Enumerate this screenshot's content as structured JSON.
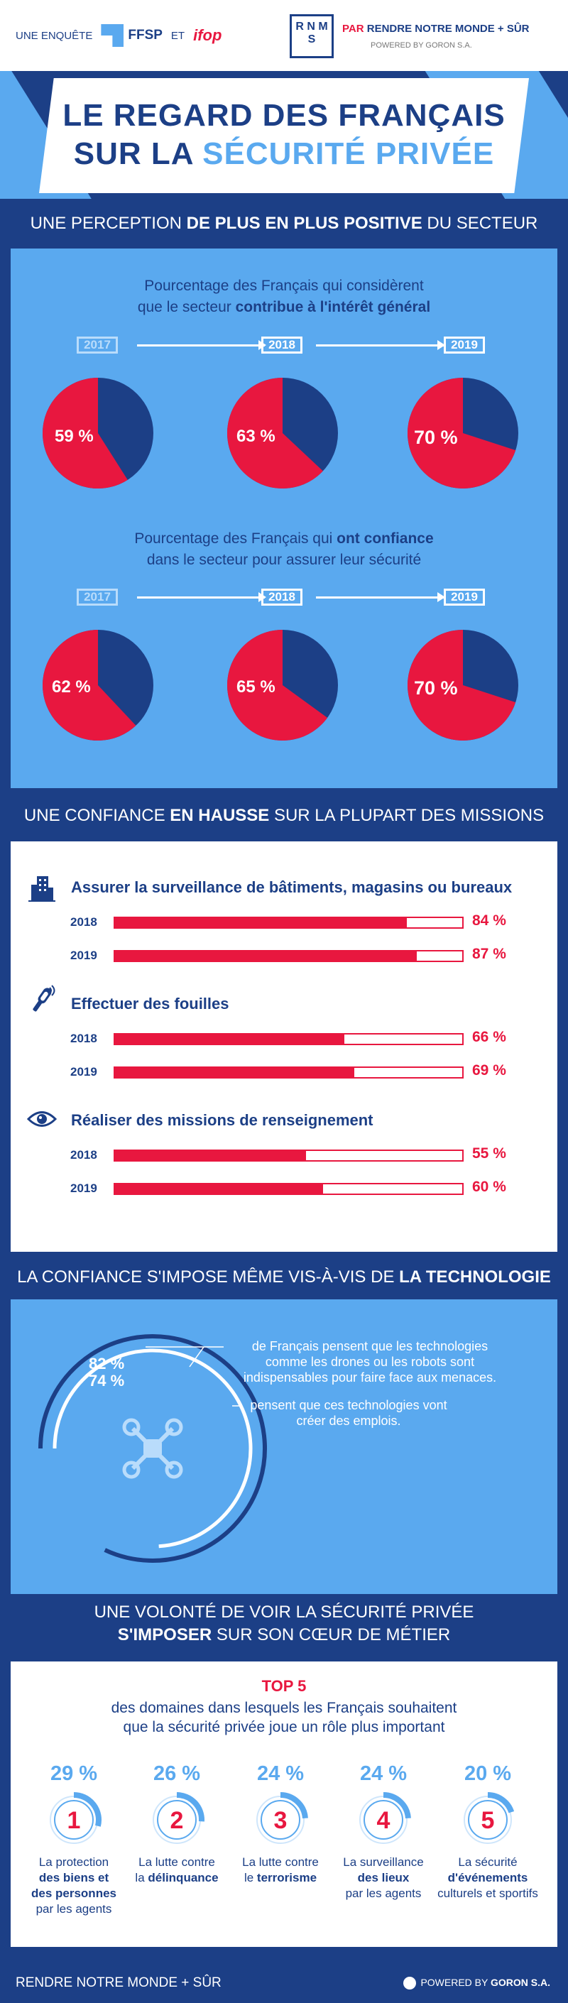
{
  "header": {
    "survey_by": "UNE ENQUÊTE",
    "ffsp": "FFSP",
    "et": "ET",
    "ifop": "ifop",
    "rnms_logo": "R N M S",
    "par": "PAR",
    "rnms_name": "RENDRE NOTRE MONDE + SÛR",
    "powered": "POWERED BY GORON S.A."
  },
  "title": {
    "line1": "LE REGARD DES FRANÇAIS",
    "line2a": "SUR LA",
    "line2b": "SÉCURITÉ PRIVÉE"
  },
  "section1": {
    "heading_a": "UNE PERCEPTION",
    "heading_b": "DE PLUS EN PLUS POSITIVE",
    "heading_c": "DU SECTEUR",
    "q1_line1": "Pourcentage des Français qui considèrent",
    "q1_line2a": "que le secteur",
    "q1_line2b": "contribue à l'intérêt général",
    "q1_years": [
      "2017",
      "2018",
      "2019"
    ],
    "q1_values": [
      59,
      63,
      70
    ],
    "q1_labels": [
      "59 %",
      "63 %",
      "70 %"
    ],
    "q2_line1a": "Pourcentage des Français qui",
    "q2_line1b": "ont confiance",
    "q2_line2": "dans le secteur pour assurer leur sécurité",
    "q2_years": [
      "2017",
      "2018",
      "2019"
    ],
    "q2_values": [
      62,
      65,
      70
    ],
    "q2_labels": [
      "62 %",
      "65 %",
      "70 %"
    ],
    "colors": {
      "positive": "#e8173f",
      "rest": "#1c3f86"
    }
  },
  "section2": {
    "heading_a": "UNE CONFIANCE",
    "heading_b": "EN HAUSSE",
    "heading_c": "SUR LA PLUPART DES MISSIONS",
    "missions": [
      {
        "title": "Assurer la surveillance de bâtiments, magasins ou bureaux",
        "icon": "building-icon",
        "bars": [
          {
            "year": "2018",
            "value": 84,
            "label": "84 %"
          },
          {
            "year": "2019",
            "value": 87,
            "label": "87 %"
          }
        ]
      },
      {
        "title": "Effectuer des fouilles",
        "icon": "metal-detector-icon",
        "bars": [
          {
            "year": "2018",
            "value": 66,
            "label": "66 %"
          },
          {
            "year": "2019",
            "value": 69,
            "label": "69 %"
          }
        ]
      },
      {
        "title": "Réaliser des missions de renseignement",
        "icon": "eye-icon",
        "bars": [
          {
            "year": "2018",
            "value": 55,
            "label": "55 %"
          },
          {
            "year": "2019",
            "value": 60,
            "label": "60 %"
          }
        ]
      }
    ]
  },
  "section3": {
    "heading_a": "LA CONFIANCE S'IMPOSE MÊME VIS-À-VIS DE",
    "heading_b": "LA TECHNOLOGIE",
    "pct1": "82 %",
    "pct1_value": 82,
    "text1_l1": "de Français pensent que les technologies",
    "text1_l2": "comme les drones ou les robots sont",
    "text1_l3": "indispensables pour faire face aux menaces.",
    "pct2": "74 %",
    "pct2_value": 74,
    "text2_l1": "pensent que ces technologies vont",
    "text2_l2": "créer des emplois.",
    "icon": "drone-icon"
  },
  "section4": {
    "heading_l1": "UNE VOLONTÉ DE VOIR LA SÉCURITÉ PRIVÉE",
    "heading_l2a": "S'IMPOSER",
    "heading_l2b": "SUR SON CŒUR DE MÉTIER",
    "top5": "TOP 5",
    "sub_l1": "des domaines dans lesquels les Français souhaitent",
    "sub_l2": "que la sécurité privée joue un rôle plus important",
    "domains": [
      {
        "rank": "1",
        "pct": "29 %",
        "value": 29,
        "l1": "La protection",
        "l2": "des biens et",
        "l3": "des personnes",
        "l4": "par les agents"
      },
      {
        "rank": "2",
        "pct": "26 %",
        "value": 26,
        "l1": "La lutte contre",
        "l2": "la",
        "l3": "délinquance",
        "l4": ""
      },
      {
        "rank": "3",
        "pct": "24 %",
        "value": 24,
        "l1": "La lutte contre",
        "l2": "le",
        "l3": "terrorisme",
        "l4": ""
      },
      {
        "rank": "4",
        "pct": "24 %",
        "value": 24,
        "l1": "La surveillance",
        "l2": "des lieux",
        "l3": "par les agents",
        "l4": ""
      },
      {
        "rank": "5",
        "pct": "20 %",
        "value": 20,
        "l1": "La sécurité",
        "l2": "d'événements",
        "l3": "culturels et sportifs",
        "l4": ""
      }
    ]
  },
  "footer": {
    "left": "RENDRE NOTRE MONDE + SÛR",
    "right_a": "POWERED BY",
    "right_b": "GORON S.A."
  }
}
